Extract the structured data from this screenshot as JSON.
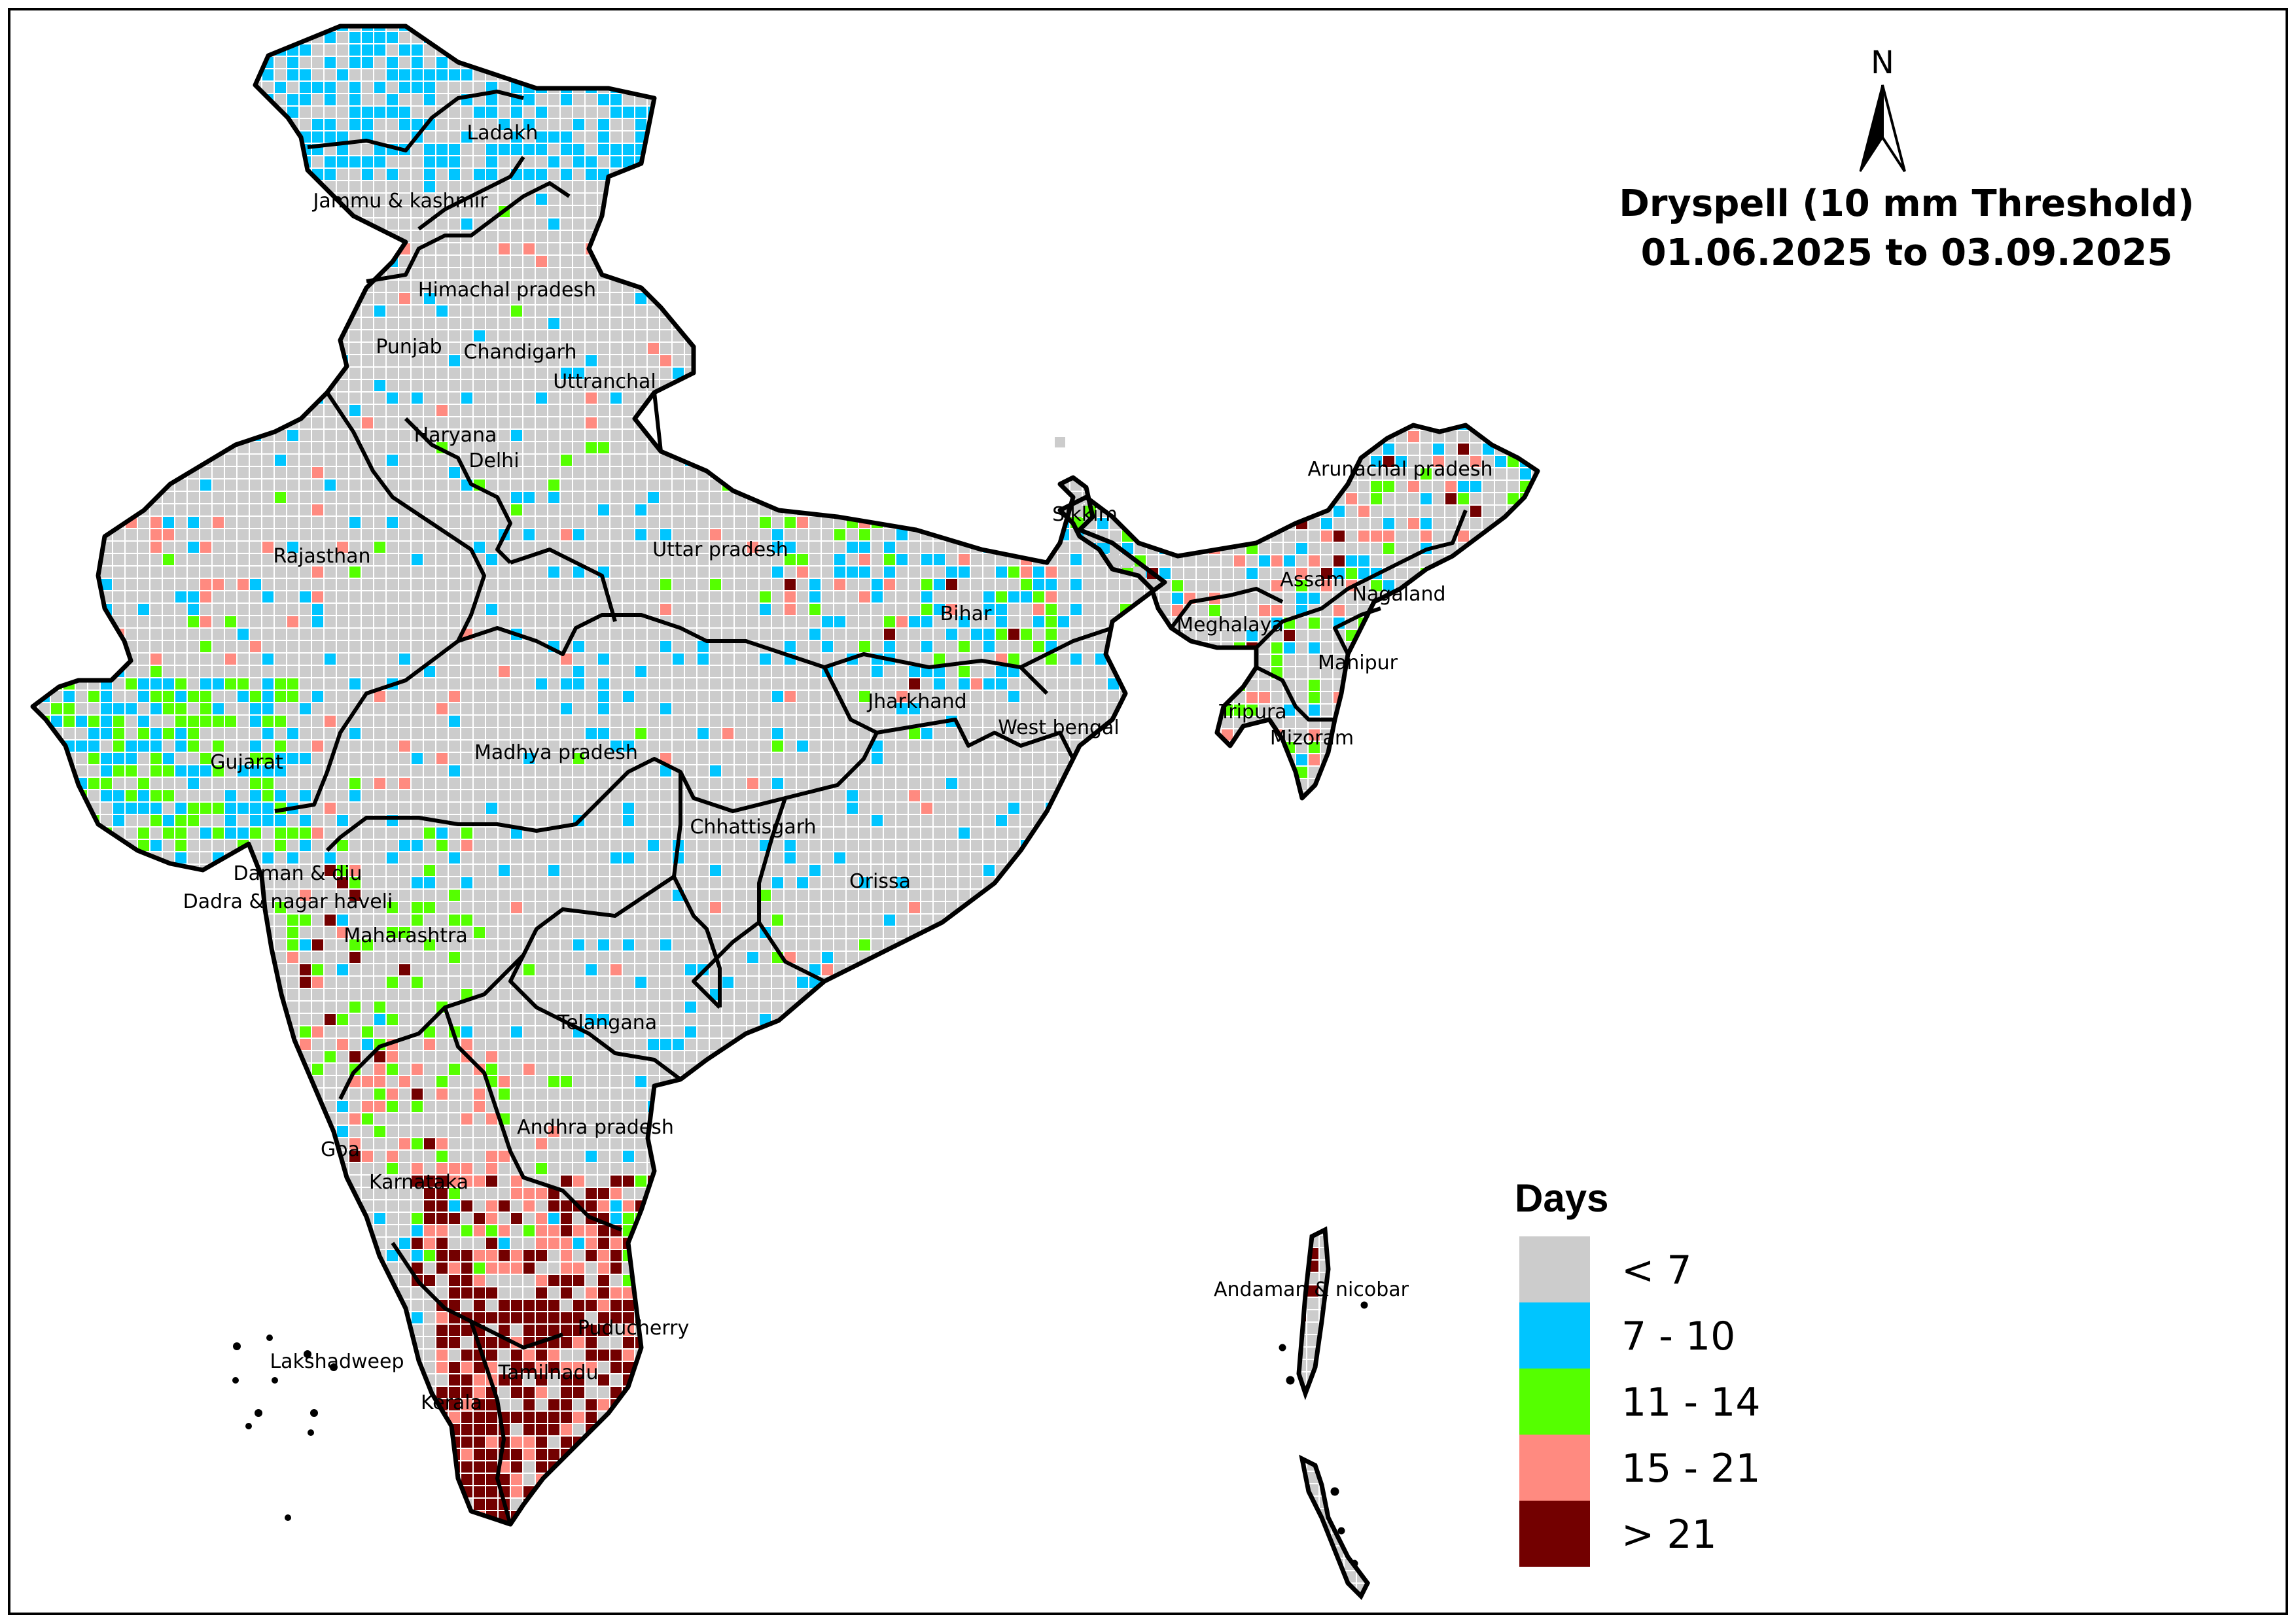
{
  "title": {
    "line1": "Dryspell (10 mm Threshold)",
    "line2": "01.06.2025 to 03.09.2025"
  },
  "north_arrow": {
    "letter": "N",
    "icon": "north-arrow-icon"
  },
  "legend": {
    "title": "Days",
    "classes": [
      {
        "label": "< 7",
        "color": "#cccccc"
      },
      {
        "label": "7 - 10",
        "color": "#00c5ff"
      },
      {
        "label": "11 - 14",
        "color": "#55ff00"
      },
      {
        "label": "15 - 21",
        "color": "#ff8a80"
      },
      {
        "label": "> 21",
        "color": "#730000"
      }
    ]
  },
  "region_labels": [
    "Ladakh",
    "Jammu & kashmir",
    "Himachal pradesh",
    "Punjab",
    "Chandigarh",
    "Uttranchal",
    "Haryana",
    "Delhi",
    "Rajasthan",
    "Uttar pradesh",
    "Sikkim",
    "Arunachal pradesh",
    "Assam",
    "Nagaland",
    "Meghalaya",
    "Bihar",
    "Manipur",
    "Jharkhand",
    "West bengal",
    "Tripura",
    "Mizoram",
    "Gujarat",
    "Madhya pradesh",
    "Chhattisgarh",
    "Orissa",
    "Daman & diu",
    "Dadra & nagar haveli",
    "Maharashtra",
    "Telangana",
    "Andhra pradesh",
    "Goa",
    "Karnataka",
    "Andaman & nicobar",
    "Puducherry",
    "Lakshadweep",
    "Tamilnadu",
    "Kerala"
  ]
}
